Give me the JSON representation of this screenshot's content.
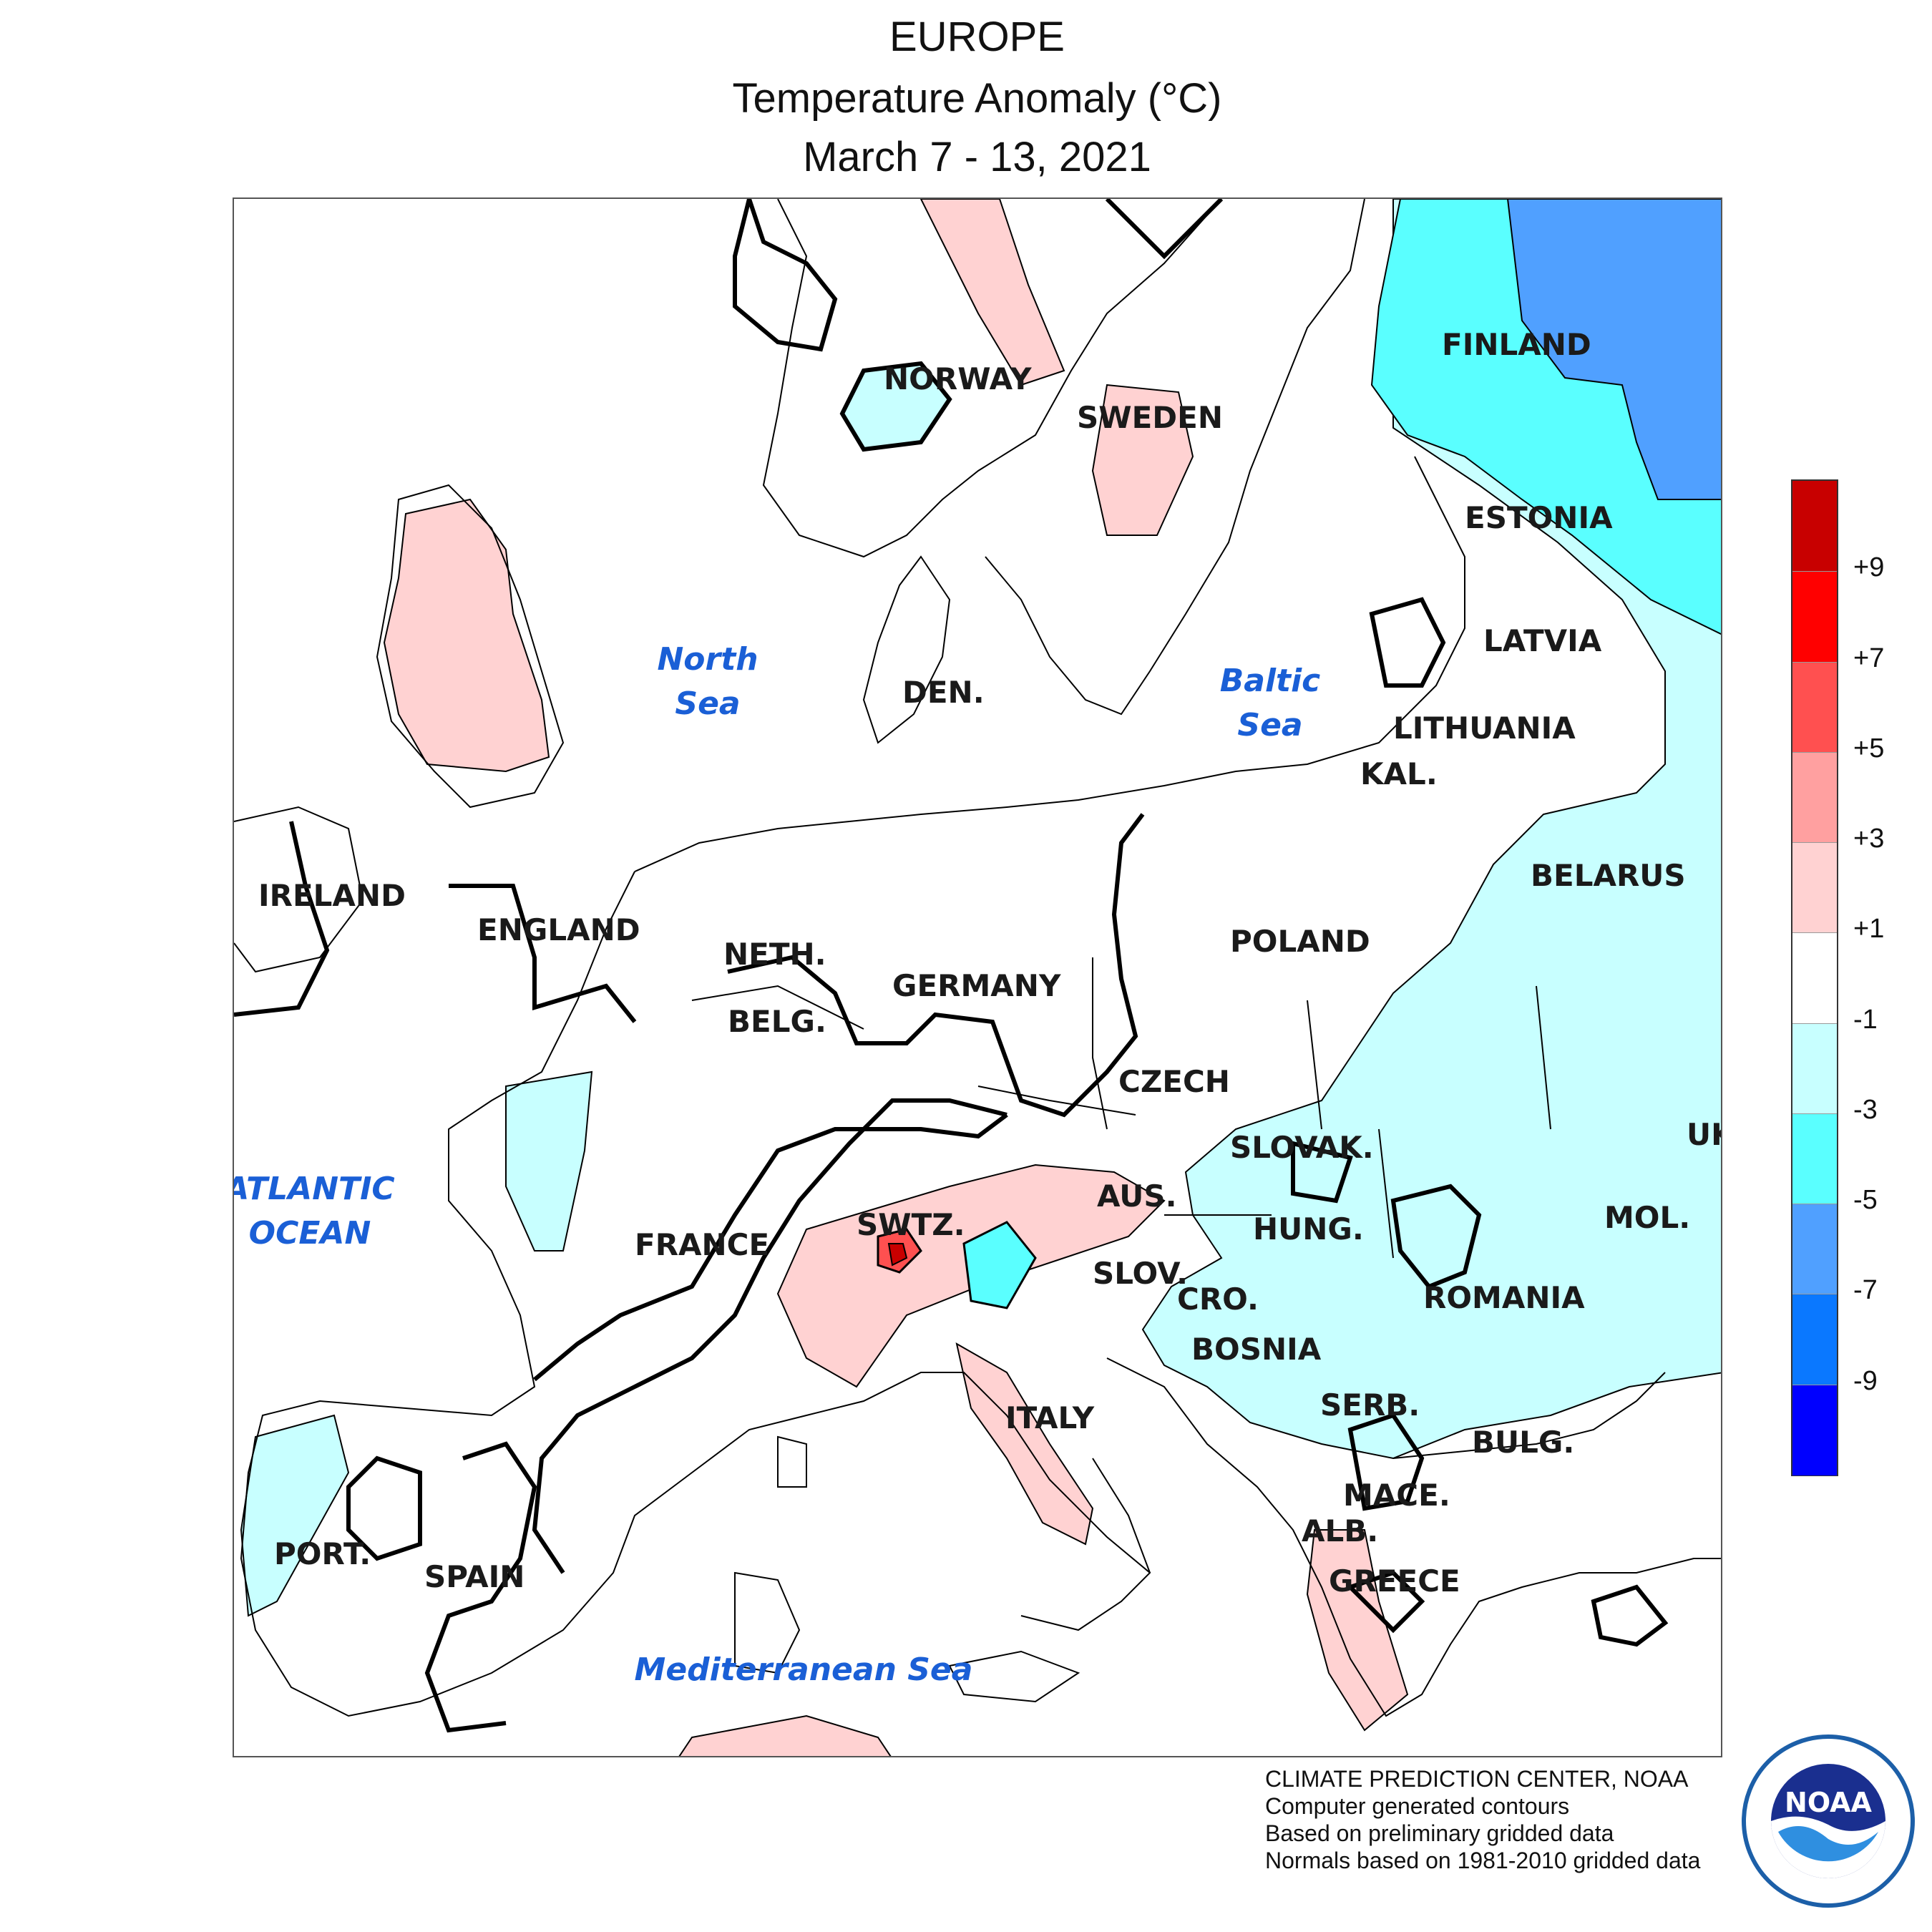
{
  "title": {
    "region": "EUROPE",
    "variable": "Temperature Anomaly (°C)",
    "period": "March 7 - 13, 2021"
  },
  "countries": [
    "FINLAND",
    "NORWAY",
    "SWEDEN",
    "ESTONIA",
    "LATVIA",
    "LITHUANIA",
    "DEN.",
    "KAL.",
    "IRELAND",
    "ENGLAND",
    "NETH.",
    "BELG.",
    "GERMANY",
    "POLAND",
    "BELARUS",
    "CZECH",
    "SLOVAK.",
    "UK",
    "AUS.",
    "SWTZ.",
    "HUNG.",
    "MOL.",
    "FRANCE",
    "SLOV.",
    "CRO.",
    "ROMANIA",
    "BOSNIA",
    "ITALY",
    "SERB.",
    "BULG.",
    "MACE.",
    "PORT.",
    "SPAIN",
    "ALB.",
    "GREECE"
  ],
  "seas": {
    "north_sea_1": "North",
    "north_sea_2": "Sea",
    "baltic_1": "Baltic",
    "baltic_2": "Sea",
    "atlantic_1": "ATLANTIC",
    "atlantic_2": "OCEAN",
    "med": "Mediterranean Sea"
  },
  "legend": {
    "colors": [
      "#c80000",
      "#ff0000",
      "#ff5050",
      "#ffa0a0",
      "#ffd2d2",
      "#ffffff",
      "#c8ffff",
      "#5affff",
      "#50a0ff",
      "#0a78ff",
      "#0000ff"
    ],
    "ticks": [
      "+9",
      "+7",
      "+5",
      "+3",
      "+1",
      "-1",
      "-3",
      "-5",
      "-7",
      "-9"
    ]
  },
  "credits": [
    "CLIMATE PREDICTION CENTER, NOAA",
    "Computer generated contours",
    "Based on preliminary gridded data",
    "Normals based on 1981-2010 gridded data"
  ],
  "logo": {
    "text": "NOAA"
  }
}
